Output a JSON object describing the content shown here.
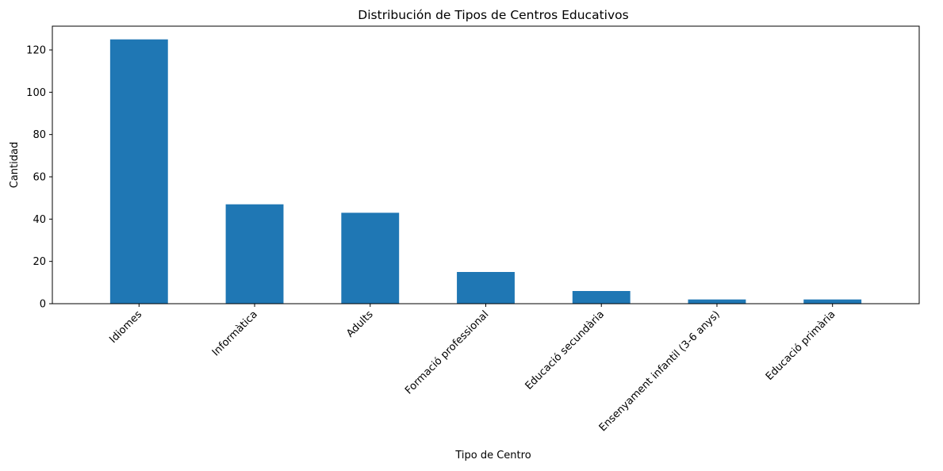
{
  "chart_data": {
    "type": "bar",
    "title": "Distribución de Tipos de Centros Educativos",
    "xlabel": "Tipo de Centro",
    "ylabel": "Cantidad",
    "categories": [
      "Idiomes",
      "Informàtica",
      "Adults",
      "Formació professional",
      "Educació secundària",
      "Ensenyament infantil (3-6 anys)",
      "Educació primària"
    ],
    "values": [
      125,
      47,
      43,
      15,
      6,
      2,
      2
    ],
    "ylim": [
      0,
      131.25
    ],
    "yticks": [
      0,
      20,
      40,
      60,
      80,
      100,
      120
    ],
    "grid": false,
    "legend": "none",
    "bar_color": "#1f77b4"
  }
}
